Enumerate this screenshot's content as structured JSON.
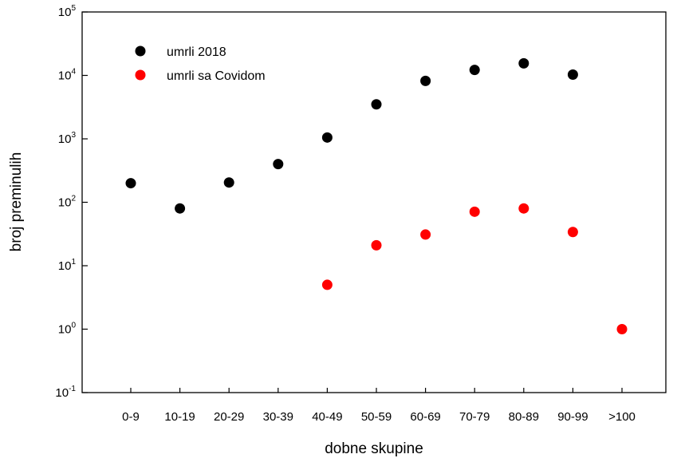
{
  "chart_data": {
    "type": "scatter",
    "xlabel": "dobne skupine",
    "ylabel": "broj preminulih",
    "yscale": "log",
    "ylim": [
      0.1,
      100000
    ],
    "yticks": [
      {
        "value": 0.1,
        "base": "10",
        "exp": "-1"
      },
      {
        "value": 1,
        "base": "10",
        "exp": "0"
      },
      {
        "value": 10,
        "base": "10",
        "exp": "1"
      },
      {
        "value": 100,
        "base": "10",
        "exp": "2"
      },
      {
        "value": 1000,
        "base": "10",
        "exp": "3"
      },
      {
        "value": 10000,
        "base": "10",
        "exp": "4"
      },
      {
        "value": 100000,
        "base": "10",
        "exp": "5"
      }
    ],
    "categories": [
      "0-9",
      "10-19",
      "20-29",
      "30-39",
      "40-49",
      "50-59",
      "60-69",
      "70-79",
      "80-89",
      "90-99",
      ">100"
    ],
    "grid": false,
    "legend_position": "top-left",
    "series": [
      {
        "name": "umrli 2018",
        "color": "#000000",
        "values": [
          200,
          80,
          205,
          400,
          1050,
          3500,
          8200,
          12200,
          15500,
          10300,
          null
        ]
      },
      {
        "name": "umrli sa Covidom",
        "color": "#ff0000",
        "values": [
          null,
          null,
          null,
          null,
          5,
          21,
          31,
          71,
          80,
          34,
          1
        ]
      }
    ]
  }
}
